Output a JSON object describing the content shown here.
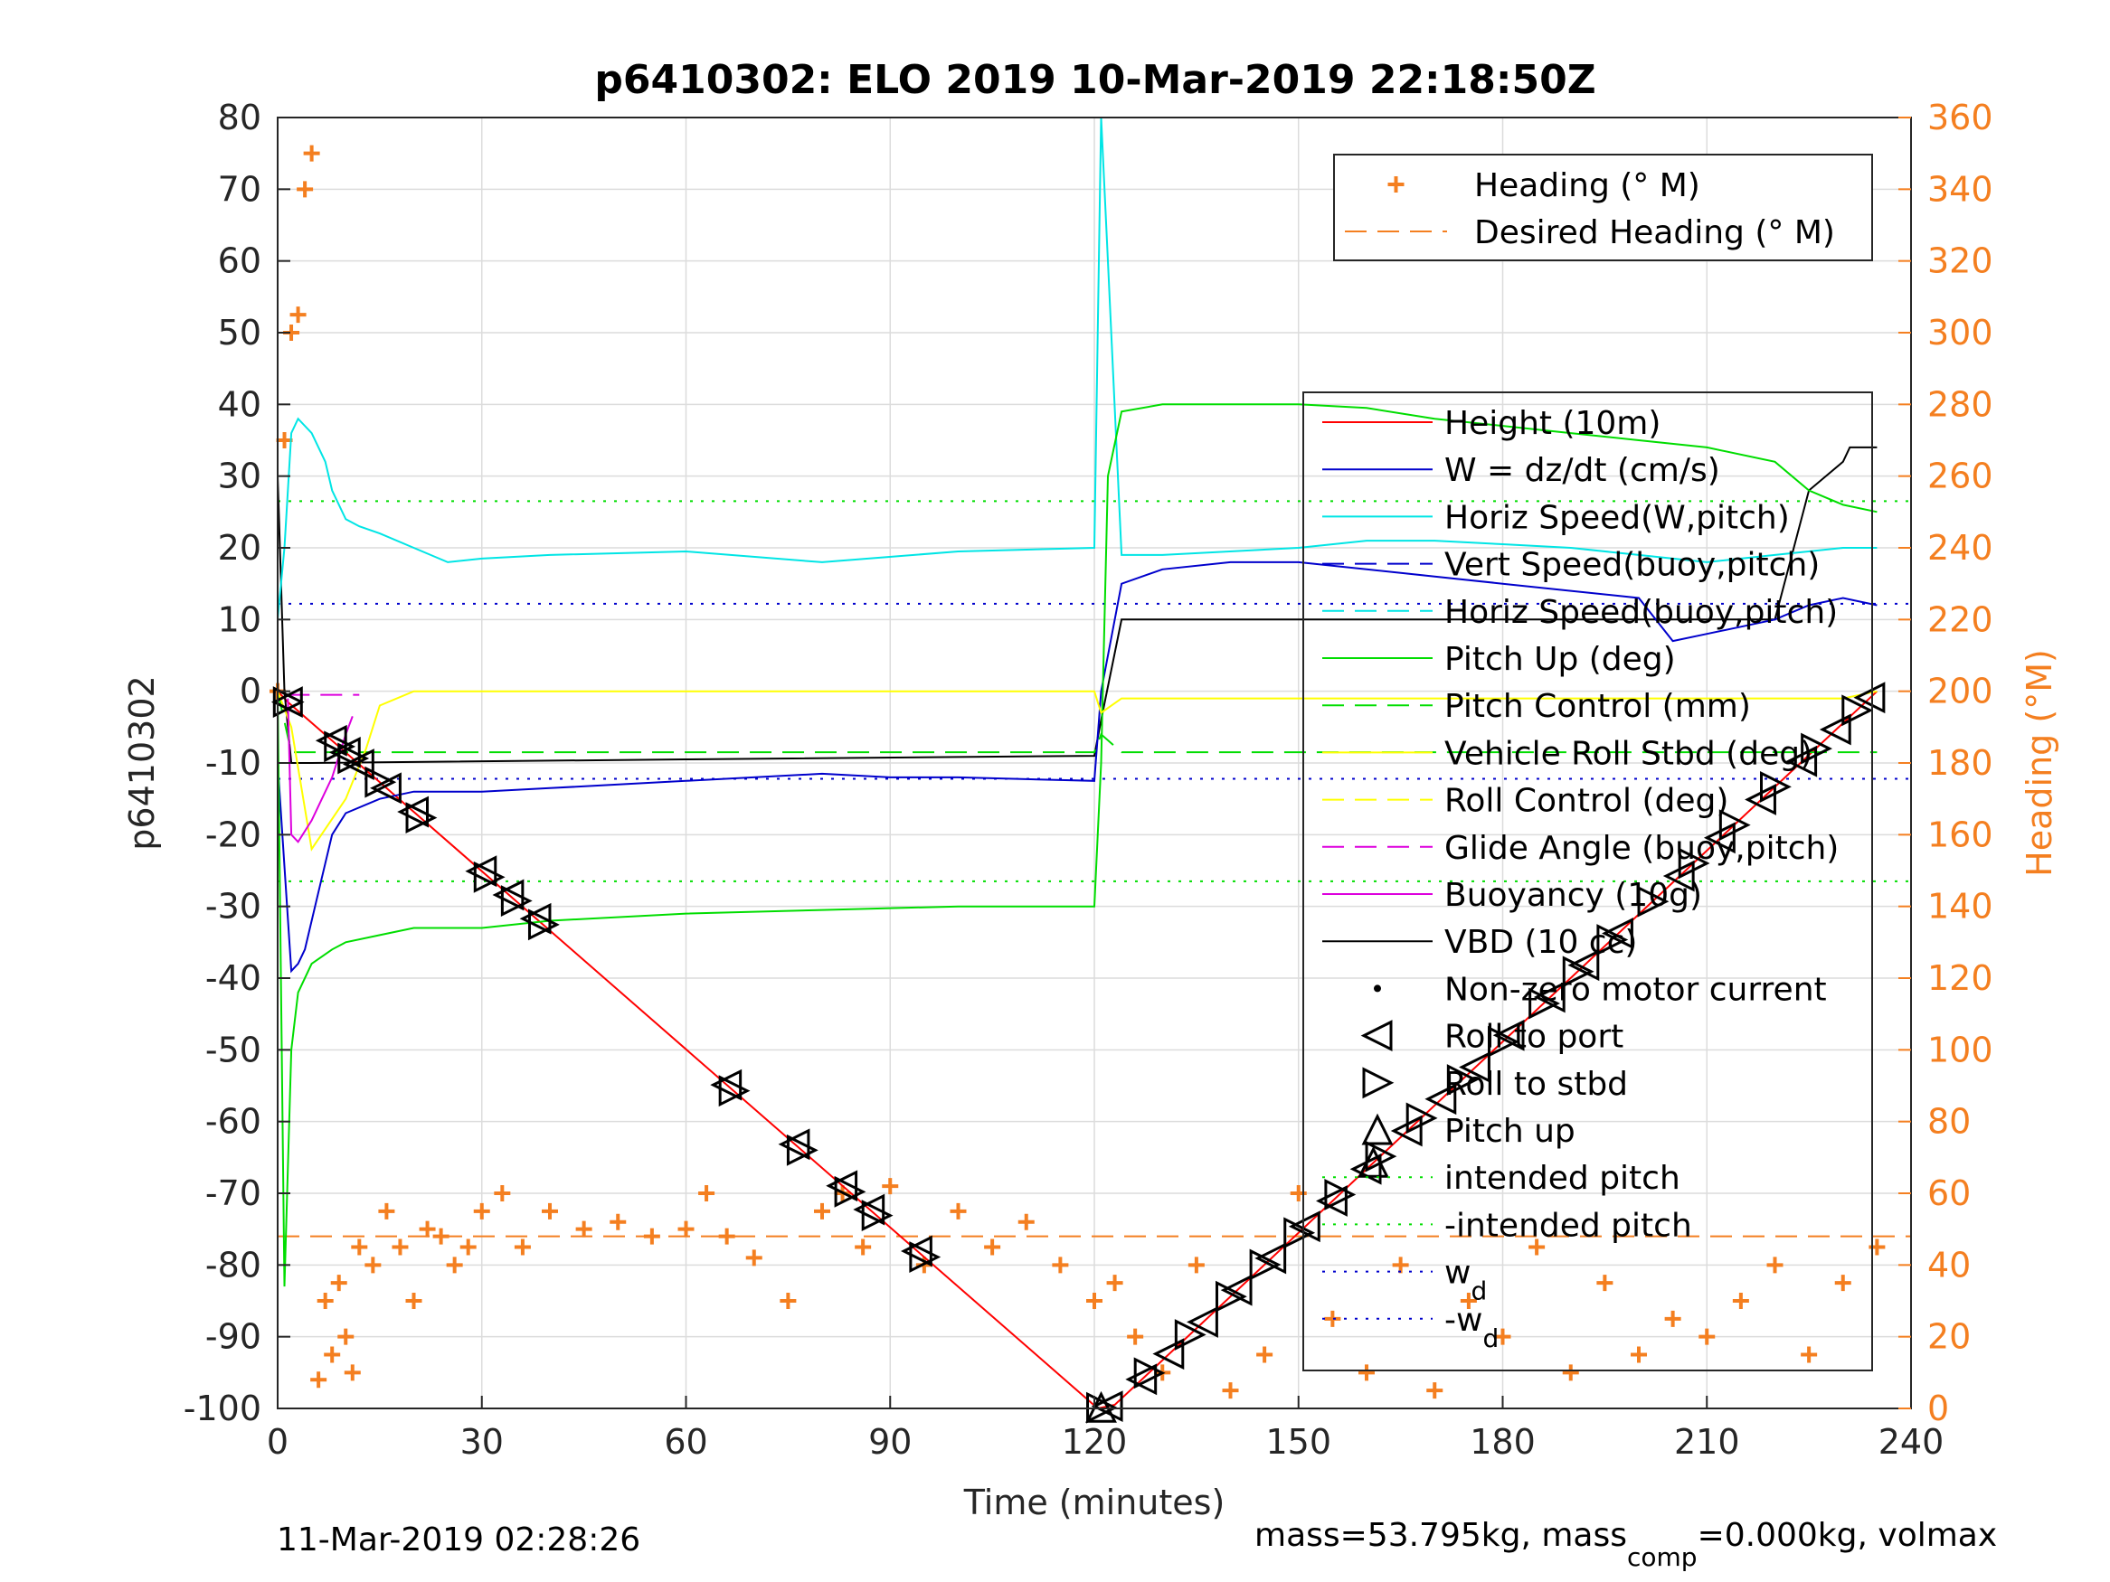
{
  "chart_data": {
    "type": "line",
    "title": "p6410302: ELO 2019 10-Mar-2019 22:18:50Z",
    "xlabel": "Time (minutes)",
    "ylabel_left": "p6410302",
    "ylabel_right": "Heading (°M)",
    "xlim": [
      0,
      240
    ],
    "ylim_left": [
      -100,
      80
    ],
    "ylim_right": [
      0,
      360
    ],
    "x_ticks": [
      "0",
      "30",
      "60",
      "90",
      "120",
      "150",
      "180",
      "210",
      "240"
    ],
    "y_ticks_left": [
      "80",
      "70",
      "60",
      "50",
      "40",
      "30",
      "20",
      "10",
      "0",
      "-10",
      "-20",
      "-30",
      "-40",
      "-50",
      "-60",
      "-70",
      "-80",
      "-90",
      "-100"
    ],
    "y_ticks_right": [
      "360",
      "340",
      "320",
      "300",
      "280",
      "260",
      "240",
      "220",
      "200",
      "180",
      "160",
      "140",
      "120",
      "100",
      "80",
      "60",
      "40",
      "20",
      "0"
    ],
    "grid": true,
    "footer_left": "11-Mar-2019 02:28:26",
    "footer_right": "mass=53.795kg, mass",
    "footer_right_sub": "comp",
    "footer_right_tail": "=0.000kg, volmax",
    "legend_heading": [
      {
        "label": "Heading (° M)",
        "color": "#F47F20",
        "style": "plus"
      },
      {
        "label": "Desired Heading (° M)",
        "color": "#F47F20",
        "style": "dashed"
      }
    ],
    "legend_main": [
      {
        "label": "Height (10m)",
        "color": "#FF0000",
        "style": "solid"
      },
      {
        "label": "W = dz/dt (cm/s)",
        "color": "#0000CC",
        "style": "solid"
      },
      {
        "label": "Horiz Speed(W,pitch)",
        "color": "#00E5E5",
        "style": "solid"
      },
      {
        "label": "Vert Speed(buoy,pitch)",
        "color": "#0000CC",
        "style": "dashed"
      },
      {
        "label": "Horiz Speed(buoy,pitch)",
        "color": "#00E5E5",
        "style": "dashed"
      },
      {
        "label": "Pitch Up (deg)",
        "color": "#00DD00",
        "style": "solid"
      },
      {
        "label": "Pitch Control (mm)",
        "color": "#00DD00",
        "style": "dashed"
      },
      {
        "label": "Vehicle Roll Stbd (deg)",
        "color": "#FFFF00",
        "style": "solid"
      },
      {
        "label": "Roll Control (deg)",
        "color": "#FFFF00",
        "style": "dashed"
      },
      {
        "label": "Glide Angle (buoy,pitch)",
        "color": "#DD00DD",
        "style": "dashed"
      },
      {
        "label": "Buoyancy (10g)",
        "color": "#DD00DD",
        "style": "solid"
      },
      {
        "label": "VBD (10 cc)",
        "color": "#000000",
        "style": "solid"
      },
      {
        "label": "Non-zero motor current",
        "color": "#000000",
        "style": "dot"
      },
      {
        "label": "Roll to port",
        "color": "#000000",
        "style": "tri-left"
      },
      {
        "label": "Roll to stbd",
        "color": "#000000",
        "style": "tri-right"
      },
      {
        "label": "Pitch up",
        "color": "#000000",
        "style": "tri-up"
      },
      {
        "label": "intended pitch",
        "color": "#00DD00",
        "style": "dotted"
      },
      {
        "label": "-intended pitch",
        "color": "#00DD00",
        "style": "dotted"
      },
      {
        "label": "w",
        "sub": "d",
        "color": "#0000CC",
        "style": "dotted"
      },
      {
        "label": "-w",
        "sub": "d",
        "color": "#0000CC",
        "style": "dotted"
      }
    ],
    "hlines": [
      {
        "name": "intended pitch",
        "y": 26.5,
        "color": "#00DD00"
      },
      {
        "name": "-intended pitch",
        "y": -26.5,
        "color": "#00DD00"
      },
      {
        "name": "w_d",
        "y": 12.2,
        "color": "#0000CC"
      },
      {
        "name": "-w_d",
        "y": -12.2,
        "color": "#0000CC"
      },
      {
        "name": "Desired Heading",
        "y_heading": 48,
        "color": "#F47F20"
      }
    ],
    "series": [
      {
        "name": "Height (10m)",
        "color": "#FF0000",
        "x": [
          0,
          1.5,
          120.5,
          123,
          235
        ],
        "y": [
          0,
          -1.5,
          -100,
          -99.5,
          0
        ]
      },
      {
        "name": "VBD (10 cc)",
        "color": "#000000",
        "x": [
          0,
          1,
          2,
          5,
          60,
          120,
          121,
          124,
          150,
          220,
          225,
          230,
          231,
          235
        ],
        "y": [
          30,
          0,
          -10,
          -10,
          -9.5,
          -9,
          -4,
          10,
          10,
          10,
          28,
          32,
          34,
          34
        ]
      },
      {
        "name": "W = dz/dt (cm/s)",
        "color": "#0000CC",
        "x": [
          0,
          2,
          3,
          4,
          6,
          8,
          10,
          15,
          20,
          30,
          40,
          60,
          80,
          90,
          100,
          120,
          121,
          124,
          130,
          140,
          150,
          160,
          170,
          180,
          190,
          200,
          205,
          210,
          215,
          220,
          225,
          230,
          235
        ],
        "y": [
          -10,
          -39,
          -38,
          -36,
          -28,
          -20,
          -17,
          -15,
          -14,
          -14,
          -13.5,
          -12.5,
          -11.5,
          -12,
          -12,
          -12.5,
          0,
          15,
          17,
          18,
          18,
          17,
          16,
          15,
          14,
          13,
          7,
          8,
          9,
          10,
          12,
          13,
          12
        ]
      },
      {
        "name": "Horiz Speed(W,pitch)",
        "color": "#00E5E5",
        "x": [
          0,
          1,
          2,
          3,
          5,
          7,
          8,
          10,
          12,
          15,
          20,
          25,
          30,
          40,
          60,
          80,
          100,
          120,
          121,
          122,
          124,
          130,
          150,
          160,
          170,
          180,
          190,
          200,
          210,
          220,
          230,
          235
        ],
        "y": [
          10,
          20,
          36,
          38,
          36,
          32,
          28,
          24,
          23,
          22,
          20,
          18,
          18.5,
          19,
          19.5,
          18,
          19.5,
          20,
          80,
          60,
          19,
          19,
          20,
          21,
          21,
          20.5,
          20,
          19,
          18,
          19,
          20,
          20
        ]
      },
      {
        "name": "Pitch Up (deg)",
        "color": "#00DD00",
        "x": [
          0,
          1,
          2,
          3,
          5,
          8,
          10,
          15,
          20,
          25,
          30,
          40,
          60,
          80,
          100,
          120,
          121,
          122,
          124,
          130,
          150,
          160,
          170,
          180,
          190,
          200,
          210,
          220,
          225,
          230,
          235
        ],
        "y": [
          0,
          -83,
          -50,
          -42,
          -38,
          -36,
          -35,
          -34,
          -33,
          -33,
          -33,
          -32,
          -31,
          -30.5,
          -30,
          -30,
          -10,
          30,
          39,
          40,
          40,
          39.5,
          38,
          37,
          36,
          35,
          34,
          32,
          28,
          26,
          25
        ]
      },
      {
        "name": "Pitch Control (mm)",
        "color": "#00DD00",
        "dashed": true,
        "x": [
          0,
          2,
          3,
          120,
          121,
          124,
          235
        ],
        "y": [
          0,
          -8.5,
          -8.5,
          -8.5,
          -6,
          -8.5,
          -8.5
        ]
      },
      {
        "name": "Vehicle Roll Stbd (deg)",
        "color": "#FFFF00",
        "x": [
          0,
          2,
          5,
          10,
          13,
          15,
          20,
          30,
          40,
          60,
          80,
          100,
          120,
          121,
          124,
          150,
          180,
          210,
          220,
          230,
          235
        ],
        "y": [
          0,
          -5,
          -22,
          -15,
          -8,
          -2,
          0,
          0,
          0,
          0,
          0,
          0,
          0,
          -3,
          -1,
          -1,
          -1,
          -1,
          -1,
          -1,
          0
        ]
      },
      {
        "name": "Glide Angle (buoy,pitch)",
        "color": "#DD00DD",
        "dashed": true,
        "x": [
          1.5,
          5,
          8,
          10,
          11,
          12
        ],
        "y": [
          -0.5,
          -0.5,
          -0.5,
          -0.5,
          -0.5,
          -0.5
        ]
      },
      {
        "name": "Buoyancy (10g)",
        "color": "#DD00DD",
        "x": [
          1.5,
          2,
          3,
          5,
          8,
          10,
          11
        ],
        "y": [
          -1,
          -20,
          -21,
          -18,
          -12,
          -6,
          -3.5
        ]
      }
    ],
    "heading": {
      "name": "Heading (° M)",
      "units": "°M",
      "x": [
        0,
        1,
        2,
        3,
        4,
        5,
        6,
        7,
        8,
        9,
        10,
        11,
        12,
        14,
        16,
        18,
        20,
        22,
        24,
        26,
        28,
        30,
        33,
        36,
        40,
        45,
        50,
        55,
        60,
        63,
        66,
        70,
        75,
        80,
        83,
        86,
        90,
        95,
        100,
        105,
        110,
        115,
        120,
        123,
        126,
        130,
        135,
        140,
        145,
        150,
        155,
        160,
        165,
        170,
        175,
        180,
        185,
        190,
        195,
        200,
        205,
        210,
        215,
        220,
        225,
        230,
        235
      ],
      "y": [
        200,
        270,
        300,
        305,
        340,
        350,
        8,
        30,
        15,
        35,
        20,
        10,
        45,
        40,
        55,
        45,
        30,
        50,
        48,
        40,
        45,
        55,
        60,
        45,
        55,
        50,
        52,
        48,
        50,
        60,
        48,
        42,
        30,
        55,
        60,
        45,
        62,
        40,
        55,
        45,
        52,
        40,
        30,
        35,
        20,
        10,
        40,
        5,
        15,
        60,
        25,
        10,
        40,
        5,
        30,
        20,
        45,
        10,
        35,
        15,
        25,
        20,
        30,
        40,
        15,
        35,
        45
      ]
    },
    "markers": {
      "roll_to_port_x": [
        1.5,
        8,
        10,
        12,
        16,
        20,
        30,
        34,
        38,
        66,
        76,
        83,
        87,
        94,
        122,
        127,
        131,
        136,
        141,
        146,
        151,
        155,
        160,
        166,
        171,
        176,
        181,
        187,
        192,
        197,
        206,
        212,
        218,
        224,
        229,
        234
      ],
      "roll_to_stbd_x": [
        1.5,
        9,
        11,
        15,
        21,
        31,
        35,
        39,
        67,
        77,
        84,
        88,
        95,
        121,
        128,
        134,
        140,
        145,
        150,
        156,
        162,
        168,
        174,
        180,
        186,
        191,
        196,
        202,
        208,
        214,
        220,
        226,
        232
      ],
      "pitch_up_x": [
        121,
        161
      ]
    }
  }
}
